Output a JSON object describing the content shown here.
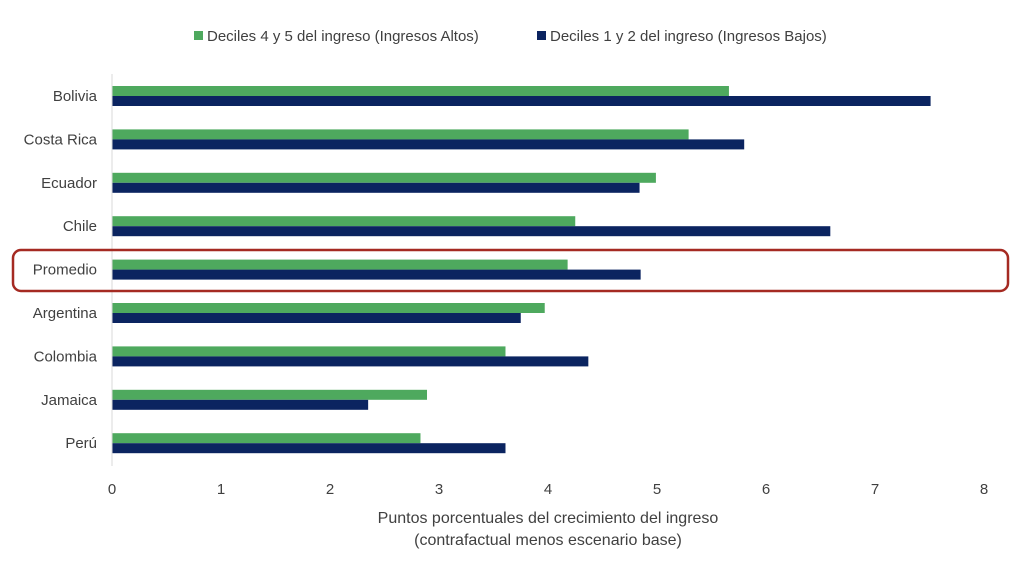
{
  "chart_data": {
    "type": "bar",
    "orientation": "horizontal",
    "categories": [
      "Bolivia",
      "Costa Rica",
      "Ecuador",
      "Chile",
      "Promedio",
      "Argentina",
      "Colombia",
      "Jamaica",
      "Perú"
    ],
    "series": [
      {
        "name": "Deciles 4 y 5 del ingreso (Ingresos Altos)",
        "color": "#4EA95E",
        "values": [
          5.66,
          5.29,
          4.99,
          4.25,
          4.18,
          3.97,
          3.61,
          2.89,
          2.83
        ]
      },
      {
        "name": "Deciles 1 y 2 del ingreso (Ingresos Bajos)",
        "color": "#0B2460",
        "values": [
          7.51,
          5.8,
          4.84,
          6.59,
          4.85,
          3.75,
          4.37,
          2.35,
          3.61
        ]
      }
    ],
    "xlabel_line1": "Puntos porcentuales del crecimiento del ingreso",
    "xlabel_line2": "(contrafactual menos escenario base)",
    "xlim": [
      0,
      8
    ],
    "xticks": [
      "0",
      "1",
      "2",
      "3",
      "4",
      "5",
      "6",
      "7",
      "8"
    ],
    "grid": false,
    "legend_position": "top",
    "highlighted_category": "Promedio",
    "highlight_color": "#A52A22"
  }
}
